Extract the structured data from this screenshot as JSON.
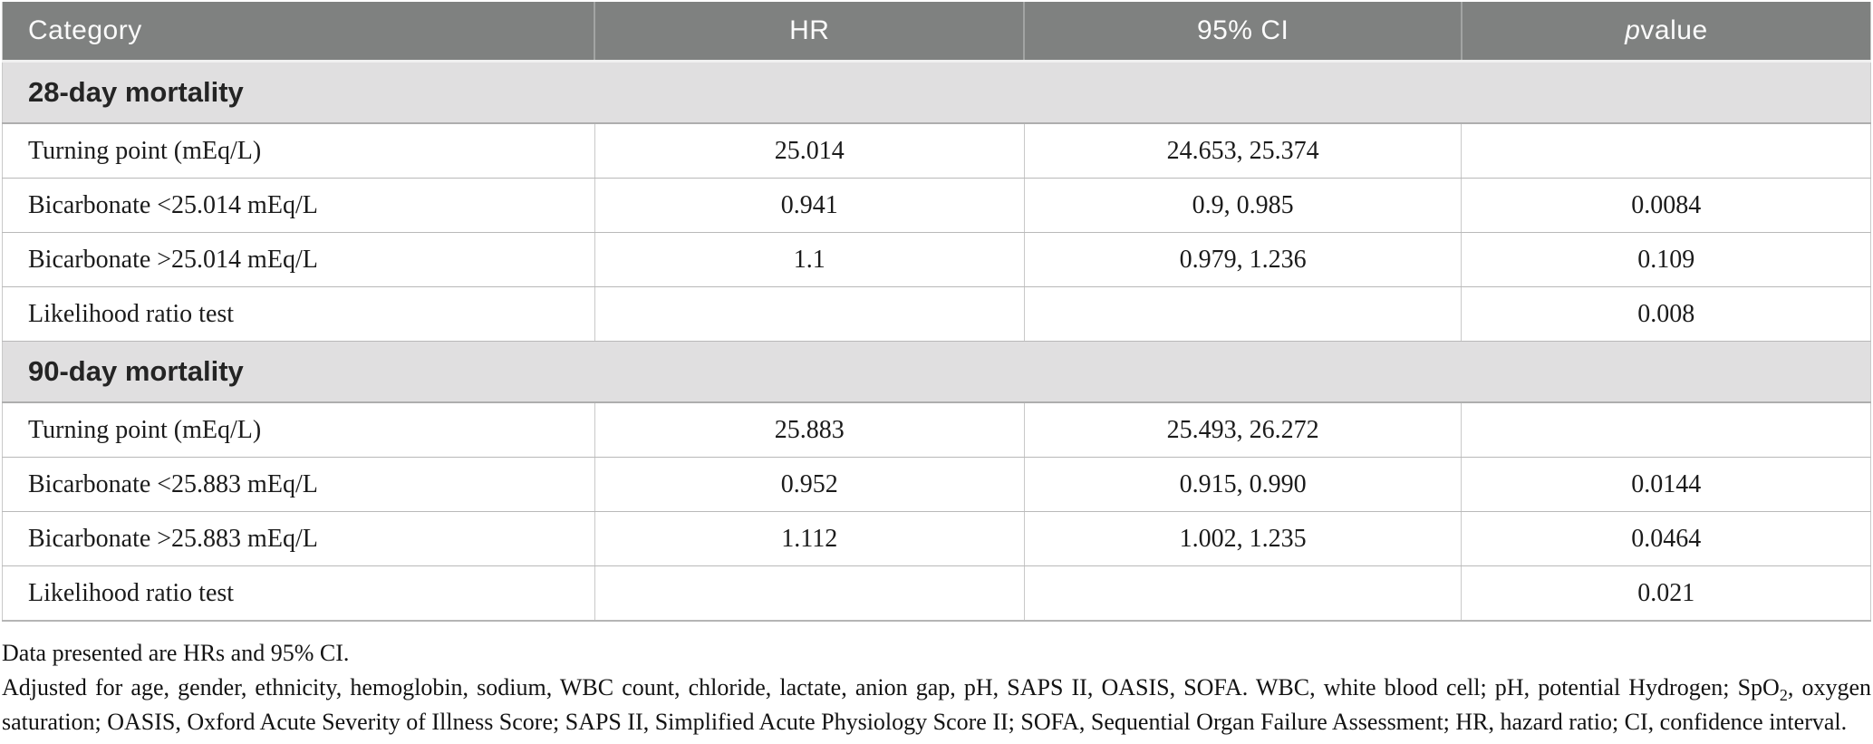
{
  "table": {
    "headers": {
      "category": "Category",
      "hr": "HR",
      "ci": "95% CI",
      "p_italic": "p",
      "p_rest": "value"
    },
    "sections": [
      {
        "title": "28-day mortality",
        "rows": [
          {
            "category": "Turning point (mEq/L)",
            "hr": "25.014",
            "ci": "24.653, 25.374",
            "p": ""
          },
          {
            "category": "Bicarbonate <25.014 mEq/L",
            "hr": "0.941",
            "ci": "0.9, 0.985",
            "p": "0.0084"
          },
          {
            "category": "Bicarbonate >25.014 mEq/L",
            "hr": "1.1",
            "ci": "0.979, 1.236",
            "p": "0.109"
          },
          {
            "category": "Likelihood ratio test",
            "hr": "",
            "ci": "",
            "p": "0.008"
          }
        ]
      },
      {
        "title": "90-day mortality",
        "rows": [
          {
            "category": "Turning point (mEq/L)",
            "hr": "25.883",
            "ci": "25.493, 26.272",
            "p": ""
          },
          {
            "category": "Bicarbonate <25.883 mEq/L",
            "hr": "0.952",
            "ci": "0.915, 0.990",
            "p": "0.0144"
          },
          {
            "category": "Bicarbonate >25.883 mEq/L",
            "hr": "1.112",
            "ci": "1.002, 1.235",
            "p": "0.0464"
          },
          {
            "category": "Likelihood ratio test",
            "hr": "",
            "ci": "",
            "p": "0.021"
          }
        ]
      }
    ]
  },
  "footnotes": {
    "line1": "Data presented are HRs and 95% CI.",
    "adjusted_part1": "Adjusted for age, gender, ethnicity, hemoglobin, sodium, WBC count, chloride, lactate, anion gap, pH, SAPS II, OASIS, SOFA. WBC, white blood cell; pH, potential Hydrogen; SpO",
    "spo2_sub": "2",
    "adjusted_part2": ", oxygen saturation; OASIS, Oxford Acute Severity of Illness Score; SAPS II, Simplified Acute Physiology Score II; SOFA, Sequential Organ Failure Assessment; HR, hazard ratio; CI, confidence interval."
  },
  "colors": {
    "header_bg": "#7f8180",
    "header_text": "#fbfbfb",
    "section_bg": "#e0dfe0",
    "body_text": "#1b1b1b",
    "grid_line": "#b9b9b9"
  }
}
